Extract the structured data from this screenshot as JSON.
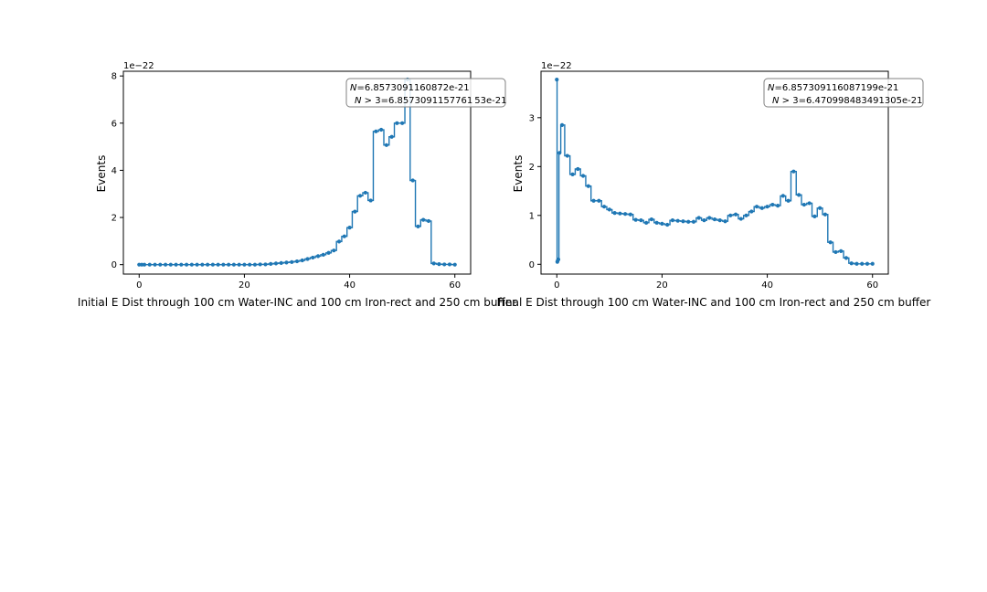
{
  "colors": {
    "series": "#1f77b4",
    "box_edge": "#808080",
    "axes": "#000000"
  },
  "chart_data": [
    {
      "type": "line",
      "drawstyle": "steps-mid",
      "marker": "dot",
      "title": "Initial E Dist through 100 cm Water-INC and 100 cm Iron-rect and 250 cm buffer",
      "xlabel": "",
      "ylabel": "Events",
      "y_offset_label": "1e−22",
      "xlim": [
        -3,
        63
      ],
      "ylim": [
        -0.4,
        8.2
      ],
      "xticks": [
        0,
        20,
        40,
        60
      ],
      "xtick_labels": [
        "0",
        "20",
        "40",
        "60"
      ],
      "yticks": [
        0,
        2,
        4,
        6,
        8
      ],
      "ytick_labels": [
        "0",
        "2",
        "4",
        "6",
        "8"
      ],
      "grid": false,
      "annotation": {
        "line1_symbol": "N",
        "line1_value": "=6.8573091160872e-21",
        "line2_symbol": "N",
        "line2_op": " > 3",
        "line2_value": "=6.8573091157761 53e-21"
      },
      "series": [
        {
          "x": [
            0,
            0.5,
            1,
            2,
            3,
            4,
            5,
            6,
            7,
            8,
            9,
            10,
            11,
            12,
            13,
            14,
            15,
            16,
            17,
            18,
            19,
            20,
            21,
            22,
            23,
            24,
            25,
            26,
            27,
            28,
            29,
            30,
            31,
            32,
            33,
            34,
            35,
            36,
            37,
            38,
            39,
            40,
            41,
            42,
            43,
            44,
            45,
            46,
            47,
            48,
            49,
            50,
            51,
            52,
            53,
            54,
            55,
            56,
            57,
            58,
            59,
            60
          ],
          "values": [
            0,
            0,
            0,
            0,
            0,
            0,
            0,
            0,
            0,
            0,
            0,
            0,
            0,
            0,
            0,
            0,
            0,
            0,
            0,
            0,
            0,
            0,
            0,
            0,
            0.01,
            0.01,
            0.03,
            0.05,
            0.07,
            0.09,
            0.11,
            0.14,
            0.18,
            0.24,
            0.3,
            0.36,
            0.42,
            0.5,
            0.6,
            0.98,
            1.2,
            1.57,
            2.25,
            2.92,
            3.05,
            2.72,
            5.65,
            5.72,
            5.07,
            5.42,
            6.0,
            6.0,
            7.85,
            3.57,
            1.62,
            1.9,
            1.85,
            0.05,
            0.02,
            0.01,
            0.01,
            0.0
          ]
        }
      ]
    },
    {
      "type": "line",
      "drawstyle": "steps-mid",
      "marker": "dot",
      "title": "Final E Dist through 100 cm Water-INC and 100 cm Iron-rect and 250 cm buffer",
      "xlabel": "",
      "ylabel": "Events",
      "y_offset_label": "1e−22",
      "xlim": [
        -3,
        63
      ],
      "ylim": [
        -0.2,
        3.95
      ],
      "xticks": [
        0,
        20,
        40,
        60
      ],
      "xtick_labels": [
        "0",
        "20",
        "40",
        "60"
      ],
      "yticks": [
        0,
        1,
        2,
        3
      ],
      "ytick_labels": [
        "0",
        "1",
        "2",
        "3"
      ],
      "grid": false,
      "annotation": {
        "line1_symbol": "N",
        "line1_value": "=6.857309116087199e-21",
        "line2_symbol": "N",
        "line2_op": " > 3",
        "line2_value": "=6.470998483491305e-21"
      },
      "series": [
        {
          "x": [
            0,
            0.1,
            0.2,
            0.3,
            0.5,
            1,
            2,
            3,
            4,
            5,
            6,
            7,
            8,
            9,
            10,
            11,
            12,
            13,
            14,
            15,
            16,
            17,
            18,
            19,
            20,
            21,
            22,
            23,
            24,
            25,
            26,
            27,
            28,
            29,
            30,
            31,
            32,
            33,
            34,
            35,
            36,
            37,
            38,
            39,
            40,
            41,
            42,
            43,
            44,
            45,
            46,
            47,
            48,
            49,
            50,
            51,
            52,
            53,
            54,
            55,
            56,
            57,
            58,
            59,
            60
          ],
          "values": [
            3.78,
            0.05,
            0.08,
            0.1,
            2.28,
            2.85,
            2.22,
            1.84,
            1.95,
            1.81,
            1.6,
            1.3,
            1.3,
            1.18,
            1.12,
            1.05,
            1.04,
            1.03,
            1.02,
            0.91,
            0.9,
            0.85,
            0.92,
            0.85,
            0.83,
            0.81,
            0.9,
            0.89,
            0.88,
            0.87,
            0.87,
            0.95,
            0.9,
            0.95,
            0.92,
            0.9,
            0.88,
            1.0,
            1.02,
            0.93,
            1.0,
            1.08,
            1.18,
            1.15,
            1.18,
            1.22,
            1.2,
            1.4,
            1.3,
            1.9,
            1.42,
            1.22,
            1.25,
            0.98,
            1.15,
            1.02,
            0.45,
            0.25,
            0.27,
            0.13,
            0.02,
            0.01,
            0.01,
            0.01,
            0.01
          ]
        }
      ]
    }
  ]
}
